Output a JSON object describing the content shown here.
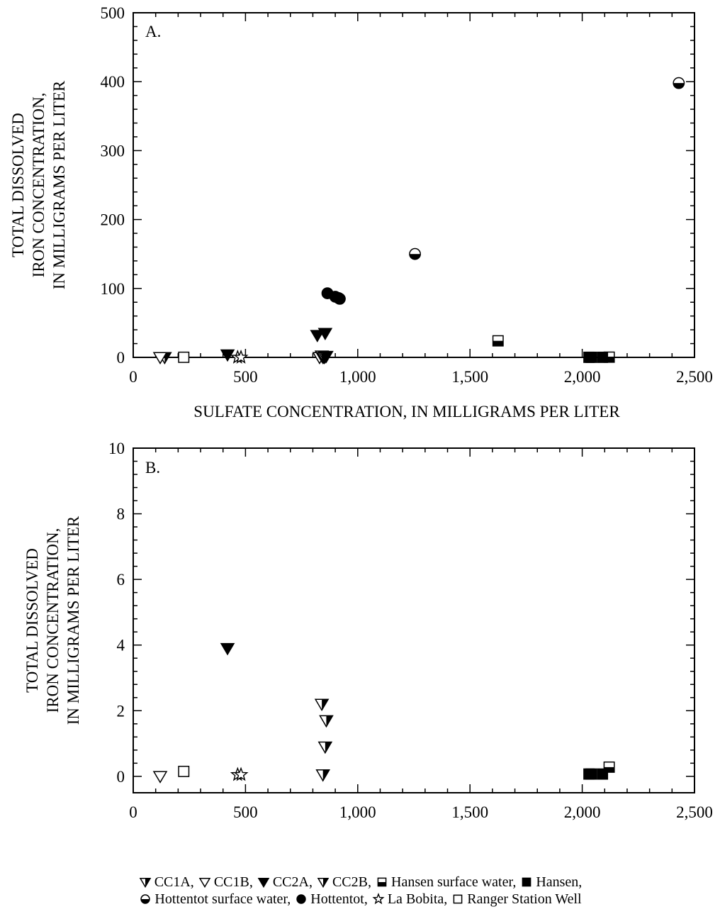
{
  "chart_data": [
    {
      "type": "scatter",
      "panel_label": "A.",
      "xlabel": "SULFATE CONCENTRATION, IN MILLIGRAMS PER LITER",
      "ylabel_lines": [
        "TOTAL DISSOLVED",
        "IRON CONCENTRATION,",
        "IN MILLIGRAMS PER LITER"
      ],
      "xlim": [
        0,
        2500
      ],
      "ylim": [
        0,
        500
      ],
      "x_ticks": [
        0,
        500,
        1000,
        1500,
        2000,
        2500
      ],
      "x_tick_labels": [
        "0",
        "500",
        "1,000",
        "1,500",
        "2,000",
        "2,500"
      ],
      "y_ticks": [
        0,
        100,
        200,
        300,
        400,
        500
      ],
      "y_tick_labels": [
        "0",
        "100",
        "200",
        "300",
        "400",
        "500"
      ],
      "grid": false,
      "series": [
        {
          "name": "CC1A",
          "marker": "tri-half",
          "points": [
            [
              140,
              0
            ]
          ]
        },
        {
          "name": "CC1B",
          "marker": "tri-open",
          "points": [
            [
              120,
              0
            ],
            [
              830,
              0
            ],
            [
              850,
              0
            ]
          ]
        },
        {
          "name": "CC2A",
          "marker": "tri-filled",
          "points": [
            [
              420,
              3.9
            ],
            [
              820,
              32
            ],
            [
              855,
              35
            ]
          ]
        },
        {
          "name": "CC2B",
          "marker": "tri-half",
          "points": [
            [
              840,
              2.2
            ],
            [
              860,
              1.7
            ],
            [
              855,
              0.9
            ],
            [
              845,
              0.1
            ]
          ]
        },
        {
          "name": "Hansen surface water",
          "marker": "sq-half",
          "points": [
            [
              1625,
              24
            ],
            [
              2120,
              0.3
            ]
          ]
        },
        {
          "name": "Hansen",
          "marker": "sq-filled",
          "points": [
            [
              2030,
              0.1
            ],
            [
              2040,
              0.1
            ],
            [
              2090,
              0.1
            ]
          ]
        },
        {
          "name": "Hottentot surface water",
          "marker": "circ-half",
          "points": [
            [
              1255,
              150
            ],
            [
              2430,
              398
            ]
          ]
        },
        {
          "name": "Hottentot",
          "marker": "circ-filled",
          "points": [
            [
              865,
              93
            ],
            [
              900,
              88
            ],
            [
              915,
              86
            ],
            [
              920,
              85
            ]
          ]
        },
        {
          "name": "La Bobita",
          "marker": "star",
          "points": [
            [
              465,
              0.05
            ],
            [
              480,
              0.05
            ]
          ]
        },
        {
          "name": "Ranger Station Well",
          "marker": "sq-open",
          "points": [
            [
              225,
              0.15
            ]
          ]
        }
      ]
    },
    {
      "type": "scatter",
      "panel_label": "B.",
      "xlabel": "SULFATE CONCENTRATION, IN MILLIGRAMS PER LITER",
      "ylabel_lines": [
        "TOTAL DISSOLVED",
        "IRON CONCENTRATION,",
        "IN MILLIGRAMS PER LITER"
      ],
      "xlim": [
        0,
        2500
      ],
      "ylim": [
        -0.5,
        10
      ],
      "x_ticks": [
        0,
        500,
        1000,
        1500,
        2000,
        2500
      ],
      "x_tick_labels": [
        "0",
        "500",
        "1,000",
        "1,500",
        "2,000",
        "2,500"
      ],
      "y_ticks": [
        0,
        2,
        4,
        6,
        8,
        10
      ],
      "y_tick_labels": [
        "0",
        "2",
        "4",
        "6",
        "8",
        "10"
      ],
      "grid": false,
      "series": [
        {
          "name": "CC1B",
          "marker": "tri-open",
          "points": [
            [
              120,
              0.0
            ]
          ]
        },
        {
          "name": "CC2A",
          "marker": "tri-filled",
          "points": [
            [
              420,
              3.9
            ]
          ]
        },
        {
          "name": "CC2B",
          "marker": "tri-half",
          "points": [
            [
              840,
              2.2
            ],
            [
              860,
              1.7
            ],
            [
              855,
              0.9
            ],
            [
              845,
              0.05
            ]
          ]
        },
        {
          "name": "Hansen",
          "marker": "sq-filled",
          "points": [
            [
              2030,
              0.07
            ],
            [
              2040,
              0.07
            ],
            [
              2090,
              0.07
            ]
          ]
        },
        {
          "name": "Hansen surface water",
          "marker": "sq-half",
          "points": [
            [
              2120,
              0.28
            ]
          ]
        },
        {
          "name": "La Bobita",
          "marker": "star",
          "points": [
            [
              465,
              0.05
            ],
            [
              480,
              0.05
            ]
          ]
        },
        {
          "name": "Ranger Station Well",
          "marker": "sq-open",
          "points": [
            [
              225,
              0.15
            ]
          ]
        }
      ]
    }
  ],
  "legend": {
    "line1": [
      {
        "marker": "tri-half",
        "label": "CC1A,"
      },
      {
        "marker": "tri-open",
        "label": "CC1B,"
      },
      {
        "marker": "tri-filled",
        "label": "CC2A,"
      },
      {
        "marker": "tri-half",
        "label": "CC2B,"
      },
      {
        "marker": "sq-half",
        "label": "Hansen surface water,"
      },
      {
        "marker": "sq-filled",
        "label": "Hansen,"
      }
    ],
    "line2": [
      {
        "marker": "circ-half",
        "label": "Hottentot surface water,"
      },
      {
        "marker": "circ-filled",
        "label": "Hottentot,"
      },
      {
        "marker": "star",
        "label": "La Bobita,"
      },
      {
        "marker": "sq-open",
        "label": "Ranger Station Well"
      }
    ]
  }
}
